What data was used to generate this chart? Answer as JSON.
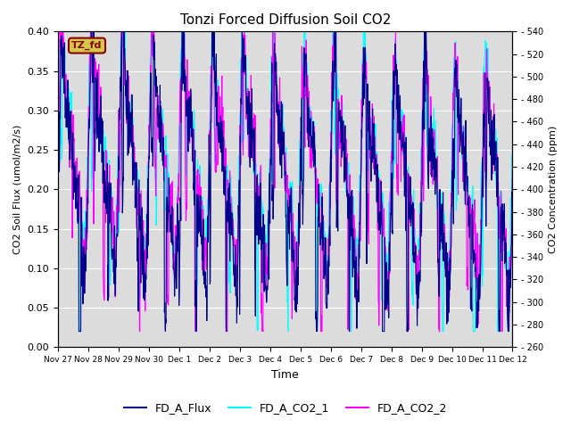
{
  "title": "Tonzi Forced Diffusion Soil CO2",
  "xlabel": "Time",
  "ylabel_left": "CO2 Soil Flux (umol/m2/s)",
  "ylabel_right": "CO2 Concentration (ppm)",
  "ylim_left": [
    0.0,
    0.4
  ],
  "ylim_right": [
    260,
    540
  ],
  "yticks_left": [
    0.0,
    0.05,
    0.1,
    0.15,
    0.2,
    0.25,
    0.3,
    0.35,
    0.4
  ],
  "yticks_right": [
    260,
    280,
    300,
    320,
    340,
    360,
    380,
    400,
    420,
    440,
    460,
    480,
    500,
    520,
    540
  ],
  "xtick_labels": [
    "Nov 27",
    "Nov 28",
    "Nov 29",
    "Nov 30",
    "Dec 1",
    "Dec 2",
    "Dec 3",
    "Dec 4",
    "Dec 5",
    "Dec 6",
    "Dec 7",
    "Dec 8",
    "Dec 9",
    "Dec 10",
    "Dec 11",
    "Dec 12"
  ],
  "flux_color": "#00008B",
  "co2_1_color": "#00FFFF",
  "co2_2_color": "#FF00FF",
  "legend_labels": [
    "FD_A_Flux",
    "FD_A_CO2_1",
    "FD_A_CO2_2"
  ],
  "annotation_text": "TZ_fd",
  "annotation_color": "#8B0000",
  "annotation_bg": "#D4C84A",
  "background_color": "#DCDCDC",
  "n_days": 15,
  "points_per_day": 96,
  "seed": 42
}
